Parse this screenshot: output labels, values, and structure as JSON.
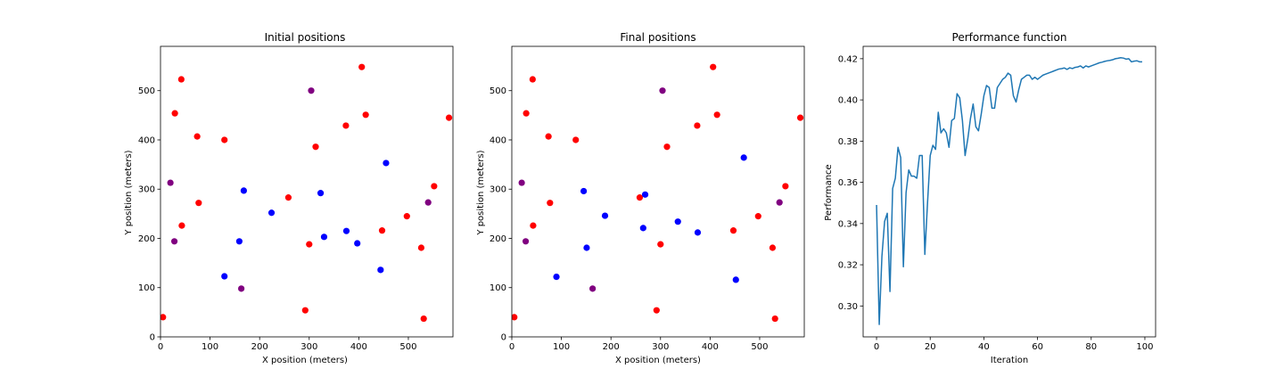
{
  "chart_data": [
    {
      "type": "scatter",
      "title": "Initial positions",
      "xlabel": "X position (meters)",
      "ylabel": "Y position (meters)",
      "xlim": [
        0,
        590
      ],
      "ylim": [
        0,
        590
      ],
      "xticks": [
        0,
        100,
        200,
        300,
        400,
        500
      ],
      "yticks": [
        0,
        100,
        200,
        300,
        400,
        500
      ],
      "colors": {
        "red": "#ff0000",
        "blue": "#0000ff",
        "purple": "#800080"
      },
      "points": [
        {
          "x": 5,
          "y": 40,
          "c": "red"
        },
        {
          "x": 20,
          "y": 313,
          "c": "purple"
        },
        {
          "x": 28,
          "y": 194,
          "c": "purple"
        },
        {
          "x": 29,
          "y": 454,
          "c": "red"
        },
        {
          "x": 42,
          "y": 523,
          "c": "red"
        },
        {
          "x": 43,
          "y": 226,
          "c": "red"
        },
        {
          "x": 74,
          "y": 407,
          "c": "red"
        },
        {
          "x": 77,
          "y": 272,
          "c": "red"
        },
        {
          "x": 129,
          "y": 400,
          "c": "red"
        },
        {
          "x": 129,
          "y": 123,
          "c": "blue"
        },
        {
          "x": 159,
          "y": 194,
          "c": "blue"
        },
        {
          "x": 163,
          "y": 98,
          "c": "purple"
        },
        {
          "x": 168,
          "y": 297,
          "c": "blue"
        },
        {
          "x": 224,
          "y": 252,
          "c": "blue"
        },
        {
          "x": 258,
          "y": 283,
          "c": "red"
        },
        {
          "x": 292,
          "y": 54,
          "c": "red"
        },
        {
          "x": 300,
          "y": 188,
          "c": "red"
        },
        {
          "x": 304,
          "y": 500,
          "c": "purple"
        },
        {
          "x": 313,
          "y": 386,
          "c": "red"
        },
        {
          "x": 323,
          "y": 292,
          "c": "blue"
        },
        {
          "x": 330,
          "y": 203,
          "c": "blue"
        },
        {
          "x": 374,
          "y": 429,
          "c": "red"
        },
        {
          "x": 375,
          "y": 215,
          "c": "blue"
        },
        {
          "x": 397,
          "y": 190,
          "c": "blue"
        },
        {
          "x": 406,
          "y": 548,
          "c": "red"
        },
        {
          "x": 414,
          "y": 451,
          "c": "red"
        },
        {
          "x": 444,
          "y": 136,
          "c": "blue"
        },
        {
          "x": 447,
          "y": 216,
          "c": "red"
        },
        {
          "x": 455,
          "y": 353,
          "c": "blue"
        },
        {
          "x": 497,
          "y": 245,
          "c": "red"
        },
        {
          "x": 526,
          "y": 181,
          "c": "red"
        },
        {
          "x": 531,
          "y": 37,
          "c": "red"
        },
        {
          "x": 540,
          "y": 273,
          "c": "purple"
        },
        {
          "x": 552,
          "y": 306,
          "c": "red"
        },
        {
          "x": 582,
          "y": 445,
          "c": "red"
        }
      ]
    },
    {
      "type": "scatter",
      "title": "Final positions",
      "xlabel": "X position (meters)",
      "ylabel": "Y position (meters)",
      "xlim": [
        0,
        590
      ],
      "ylim": [
        0,
        590
      ],
      "xticks": [
        0,
        100,
        200,
        300,
        400,
        500
      ],
      "yticks": [
        0,
        100,
        200,
        300,
        400,
        500
      ],
      "colors": {
        "red": "#ff0000",
        "blue": "#0000ff",
        "purple": "#800080"
      },
      "points": [
        {
          "x": 5,
          "y": 40,
          "c": "red"
        },
        {
          "x": 20,
          "y": 313,
          "c": "purple"
        },
        {
          "x": 28,
          "y": 194,
          "c": "purple"
        },
        {
          "x": 29,
          "y": 454,
          "c": "red"
        },
        {
          "x": 42,
          "y": 523,
          "c": "red"
        },
        {
          "x": 43,
          "y": 226,
          "c": "red"
        },
        {
          "x": 74,
          "y": 407,
          "c": "red"
        },
        {
          "x": 77,
          "y": 272,
          "c": "red"
        },
        {
          "x": 90,
          "y": 122,
          "c": "blue"
        },
        {
          "x": 129,
          "y": 400,
          "c": "red"
        },
        {
          "x": 145,
          "y": 296,
          "c": "blue"
        },
        {
          "x": 151,
          "y": 181,
          "c": "blue"
        },
        {
          "x": 163,
          "y": 98,
          "c": "purple"
        },
        {
          "x": 188,
          "y": 246,
          "c": "blue"
        },
        {
          "x": 258,
          "y": 283,
          "c": "red"
        },
        {
          "x": 265,
          "y": 221,
          "c": "blue"
        },
        {
          "x": 269,
          "y": 289,
          "c": "blue"
        },
        {
          "x": 292,
          "y": 54,
          "c": "red"
        },
        {
          "x": 300,
          "y": 188,
          "c": "red"
        },
        {
          "x": 304,
          "y": 500,
          "c": "purple"
        },
        {
          "x": 313,
          "y": 386,
          "c": "red"
        },
        {
          "x": 335,
          "y": 234,
          "c": "blue"
        },
        {
          "x": 374,
          "y": 429,
          "c": "red"
        },
        {
          "x": 375,
          "y": 212,
          "c": "blue"
        },
        {
          "x": 406,
          "y": 548,
          "c": "red"
        },
        {
          "x": 414,
          "y": 451,
          "c": "red"
        },
        {
          "x": 447,
          "y": 216,
          "c": "red"
        },
        {
          "x": 452,
          "y": 116,
          "c": "blue"
        },
        {
          "x": 468,
          "y": 364,
          "c": "blue"
        },
        {
          "x": 497,
          "y": 245,
          "c": "red"
        },
        {
          "x": 526,
          "y": 181,
          "c": "red"
        },
        {
          "x": 531,
          "y": 37,
          "c": "red"
        },
        {
          "x": 540,
          "y": 273,
          "c": "purple"
        },
        {
          "x": 552,
          "y": 306,
          "c": "red"
        },
        {
          "x": 582,
          "y": 445,
          "c": "red"
        }
      ]
    },
    {
      "type": "line",
      "title": "Performance function",
      "xlabel": "Iteration",
      "ylabel": "Performance",
      "xlim": [
        -5,
        104
      ],
      "ylim": [
        0.285,
        0.426
      ],
      "xticks": [
        0,
        20,
        40,
        60,
        80,
        100
      ],
      "yticks": [
        0.3,
        0.32,
        0.34,
        0.36,
        0.38,
        0.4,
        0.42
      ],
      "ytick_labels": [
        "0.30",
        "0.32",
        "0.34",
        "0.36",
        "0.38",
        "0.40",
        "0.42"
      ],
      "line_color": "#1f77b4",
      "x": [
        0,
        1,
        2,
        3,
        4,
        5,
        6,
        7,
        8,
        9,
        10,
        11,
        12,
        13,
        14,
        15,
        16,
        17,
        18,
        19,
        20,
        21,
        22,
        23,
        24,
        25,
        26,
        27,
        28,
        29,
        30,
        31,
        32,
        33,
        34,
        35,
        36,
        37,
        38,
        39,
        40,
        41,
        42,
        43,
        44,
        45,
        46,
        47,
        48,
        49,
        50,
        51,
        52,
        53,
        54,
        55,
        56,
        57,
        58,
        59,
        60,
        61,
        62,
        63,
        64,
        65,
        66,
        67,
        68,
        69,
        70,
        71,
        72,
        73,
        74,
        75,
        76,
        77,
        78,
        79,
        80,
        81,
        82,
        83,
        84,
        85,
        86,
        87,
        88,
        89,
        90,
        91,
        92,
        93,
        94,
        95,
        96,
        97,
        98,
        99
      ],
      "y": [
        0.349,
        0.291,
        0.324,
        0.341,
        0.345,
        0.307,
        0.357,
        0.362,
        0.377,
        0.372,
        0.319,
        0.355,
        0.366,
        0.363,
        0.363,
        0.362,
        0.373,
        0.373,
        0.325,
        0.35,
        0.373,
        0.378,
        0.376,
        0.394,
        0.384,
        0.386,
        0.384,
        0.377,
        0.39,
        0.391,
        0.403,
        0.401,
        0.39,
        0.373,
        0.381,
        0.391,
        0.398,
        0.387,
        0.385,
        0.393,
        0.402,
        0.407,
        0.406,
        0.396,
        0.396,
        0.406,
        0.408,
        0.41,
        0.411,
        0.413,
        0.412,
        0.402,
        0.399,
        0.405,
        0.41,
        0.411,
        0.412,
        0.412,
        0.41,
        0.411,
        0.41,
        0.411,
        0.412,
        0.4125,
        0.413,
        0.4135,
        0.414,
        0.4145,
        0.415,
        0.4152,
        0.4155,
        0.4148,
        0.4156,
        0.4152,
        0.4158,
        0.416,
        0.4165,
        0.4155,
        0.4165,
        0.416,
        0.4165,
        0.417,
        0.4175,
        0.418,
        0.4183,
        0.4187,
        0.419,
        0.4192,
        0.4195,
        0.42,
        0.4202,
        0.4205,
        0.4203,
        0.4198,
        0.42,
        0.4185,
        0.4188,
        0.419,
        0.4185,
        0.4185
      ]
    }
  ]
}
